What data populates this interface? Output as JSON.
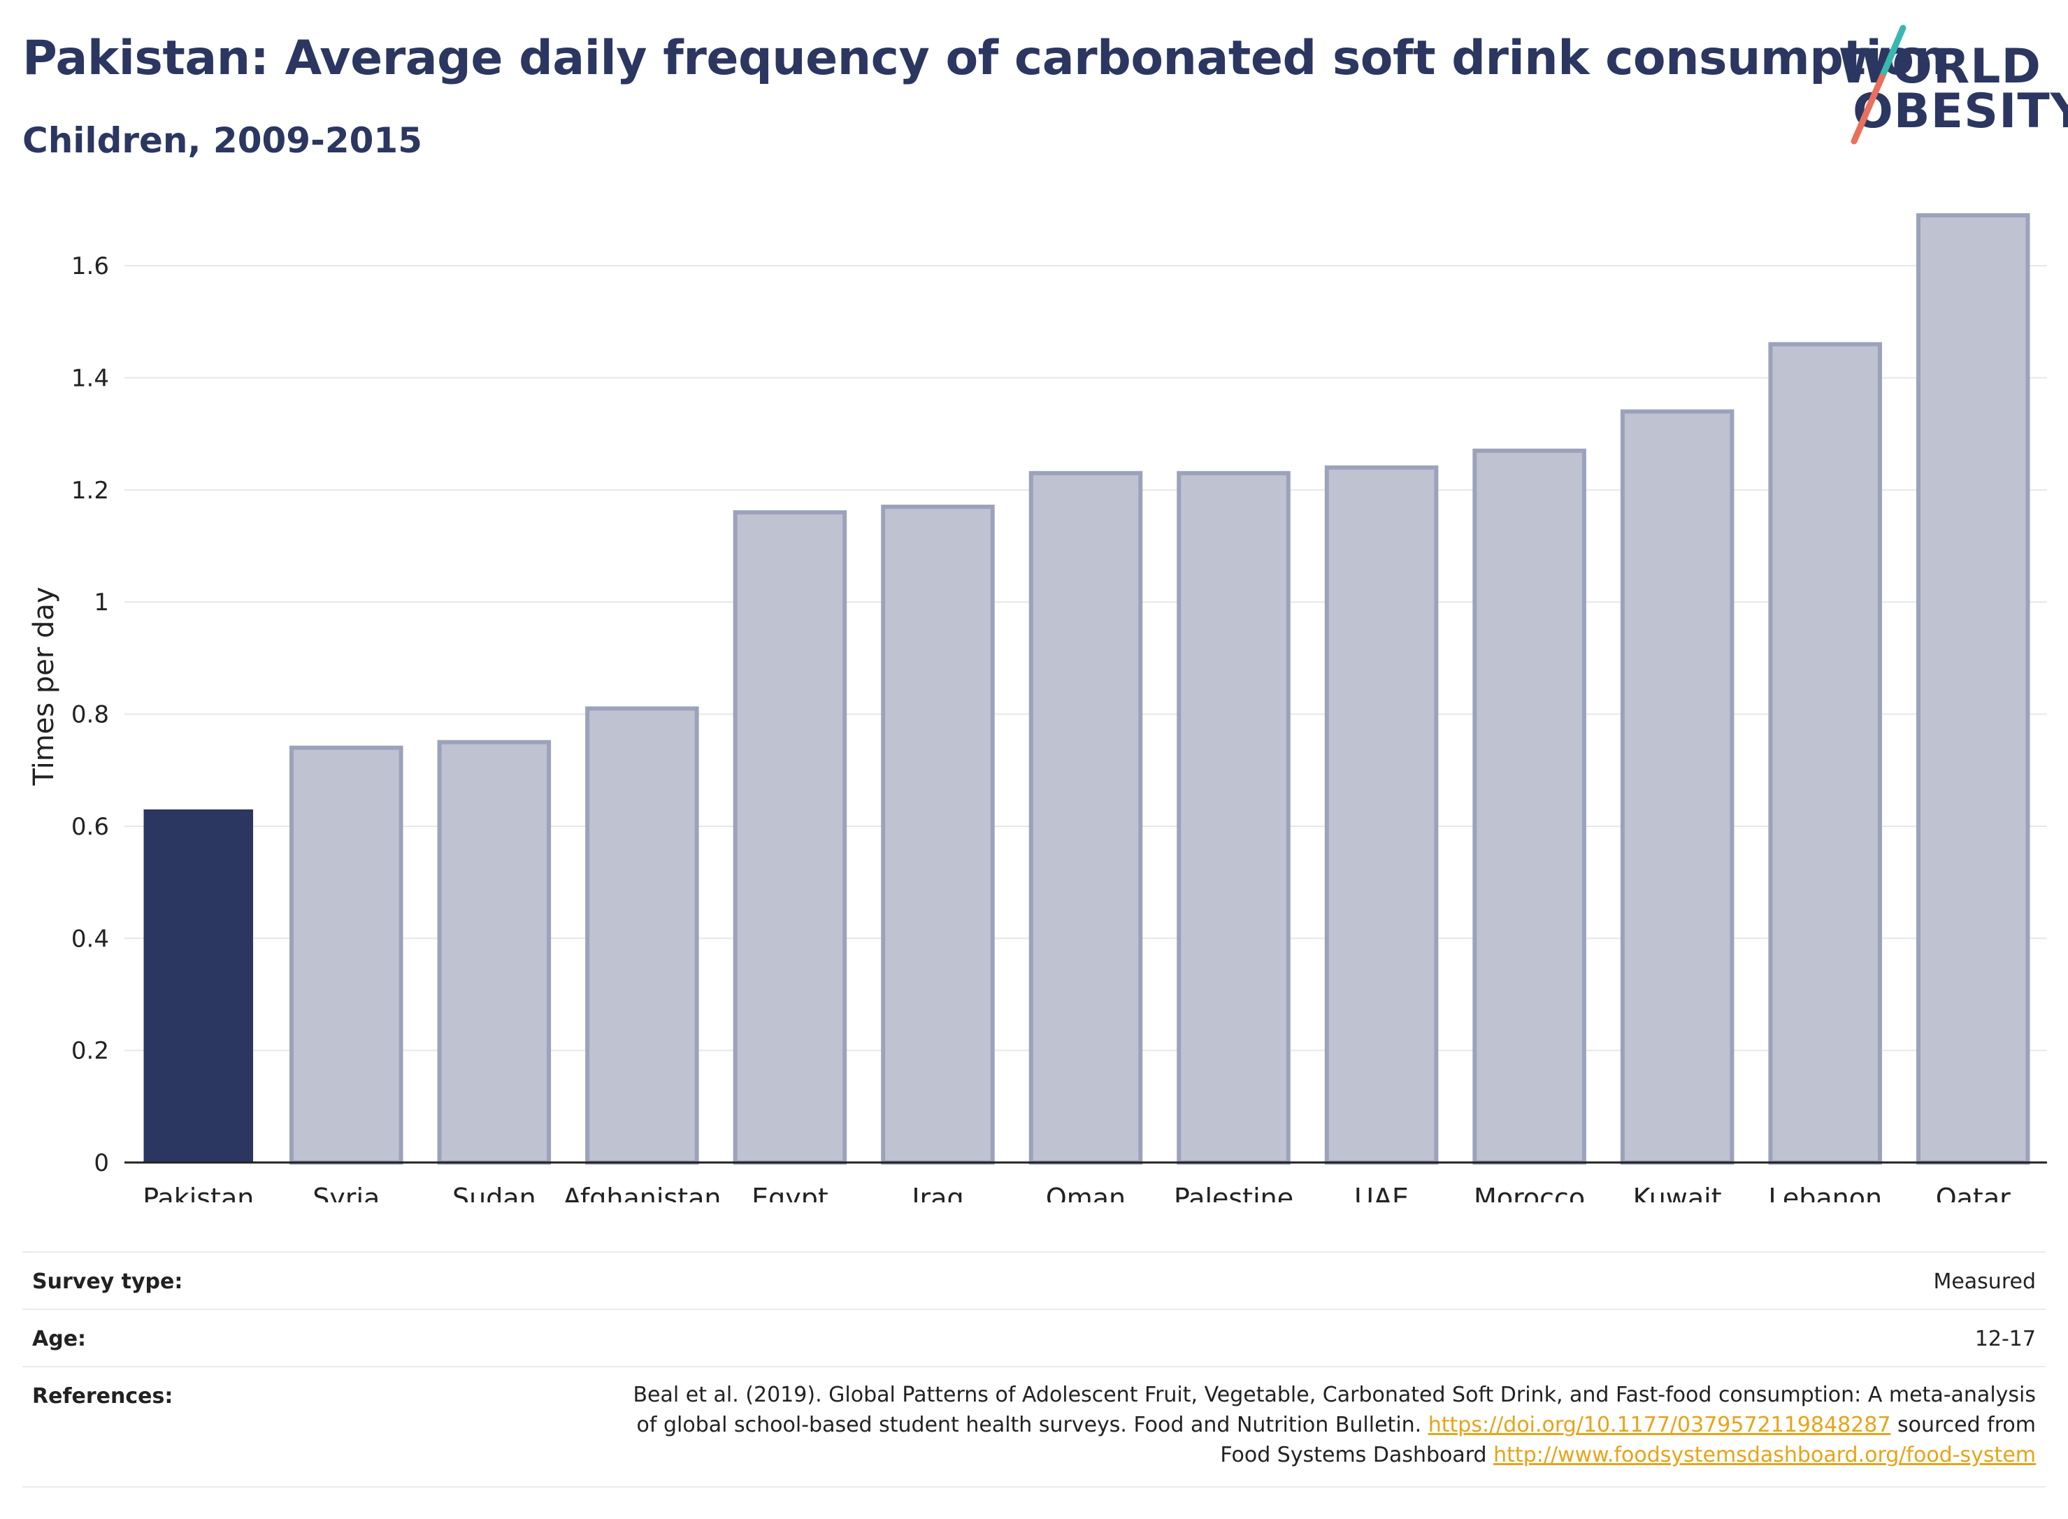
{
  "header": {
    "title": "Pakistan: Average daily frequency of carbonated soft drink consumption",
    "subtitle": "Children, 2009-2015"
  },
  "logo": {
    "line1": "WORLD",
    "line2": "OBESITY",
    "slash_colors": [
      "#39b8b0",
      "#e8705c"
    ]
  },
  "chart_data": {
    "type": "bar",
    "title": "Pakistan: Average daily frequency of carbonated soft drink consumption",
    "subtitle": "Children, 2009-2015",
    "categories": [
      "Pakistan",
      "Syria",
      "Sudan",
      "Afghanistan",
      "Egypt",
      "Iraq",
      "Oman",
      "Palestine",
      "UAE",
      "Morocco",
      "Kuwait",
      "Lebanon",
      "Qatar"
    ],
    "values": [
      0.63,
      0.74,
      0.75,
      0.81,
      1.16,
      1.17,
      1.23,
      1.23,
      1.24,
      1.27,
      1.34,
      1.46,
      1.69
    ],
    "highlight": "Pakistan",
    "xlabel": "",
    "ylabel": "Times per day",
    "ylim": [
      0,
      1.7
    ],
    "yticks": [
      0,
      0.2,
      0.4,
      0.6,
      0.8,
      1,
      1.2,
      1.4,
      1.6
    ],
    "ytick_labels": [
      "0",
      "0.2",
      "0.4",
      "0.6",
      "0.8",
      "1",
      "1.2",
      "1.4",
      "1.6"
    ],
    "grid": true,
    "colors": {
      "highlight": "#2b3761",
      "other": "#bfc2d0",
      "other_border": "#9ca2bb"
    }
  },
  "info": {
    "survey_type_label": "Survey type:",
    "survey_type_value": "Measured",
    "age_label": "Age:",
    "age_value": "12-17",
    "references_label": "References:",
    "ref_text_1": "Beal et al. (2019). Global Patterns of Adolescent Fruit, Vegetable, Carbonated Soft Drink, and Fast-food consumption: A meta-analysis",
    "ref_text_2": "of global school-based student health surveys. Food and Nutrition Bulletin.",
    "ref_link_1": "https://doi.org/10.1177/0379572119848287",
    "ref_text_3": "sourced from",
    "ref_text_4": "Food Systems Dashboard",
    "ref_link_2": "http://www.foodsystemsdashboard.org/food-system"
  }
}
